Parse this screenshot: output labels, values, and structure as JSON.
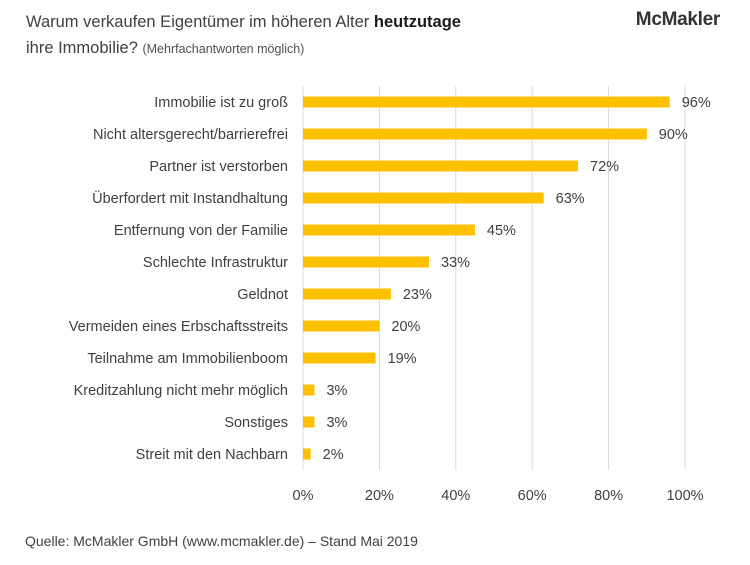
{
  "header": {
    "title_part1": "Warum verkaufen Eigentümer im höheren Alter ",
    "title_bold": "heutzutage",
    "title_part2": "ihre Immobilie? ",
    "title_note": "(Mehrfachantworten möglich)",
    "logo": "McMakler"
  },
  "footer": {
    "source": "Quelle: McMakler GmbH (www.mcmakler.de) – Stand Mai 2019"
  },
  "colors": {
    "bar": "#FFC000",
    "grid": "#D9D9D9",
    "text": "#404040"
  },
  "chart_data": {
    "type": "bar",
    "orientation": "horizontal",
    "categories": [
      "Immobilie ist zu groß",
      "Nicht altersgerecht/barrierefrei",
      "Partner ist verstorben",
      "Überfordert mit Instandhaltung",
      "Entfernung von der Familie",
      "Schlechte Infrastruktur",
      "Geldnot",
      "Vermeiden eines Erbschaftsstreits",
      "Teilnahme am Immobilienboom",
      "Kreditzahlung nicht mehr möglich",
      "Sonstiges",
      "Streit mit den Nachbarn"
    ],
    "values": [
      96,
      90,
      72,
      63,
      45,
      33,
      23,
      20,
      19,
      3,
      3,
      2
    ],
    "value_labels": [
      "96%",
      "90%",
      "72%",
      "63%",
      "45%",
      "33%",
      "23%",
      "20%",
      "19%",
      "3%",
      "3%",
      "2%"
    ],
    "xlim": [
      0,
      100
    ],
    "xticks": [
      0,
      20,
      40,
      60,
      80,
      100
    ],
    "xtick_labels": [
      "0%",
      "20%",
      "40%",
      "60%",
      "80%",
      "100%"
    ],
    "grid": true
  }
}
